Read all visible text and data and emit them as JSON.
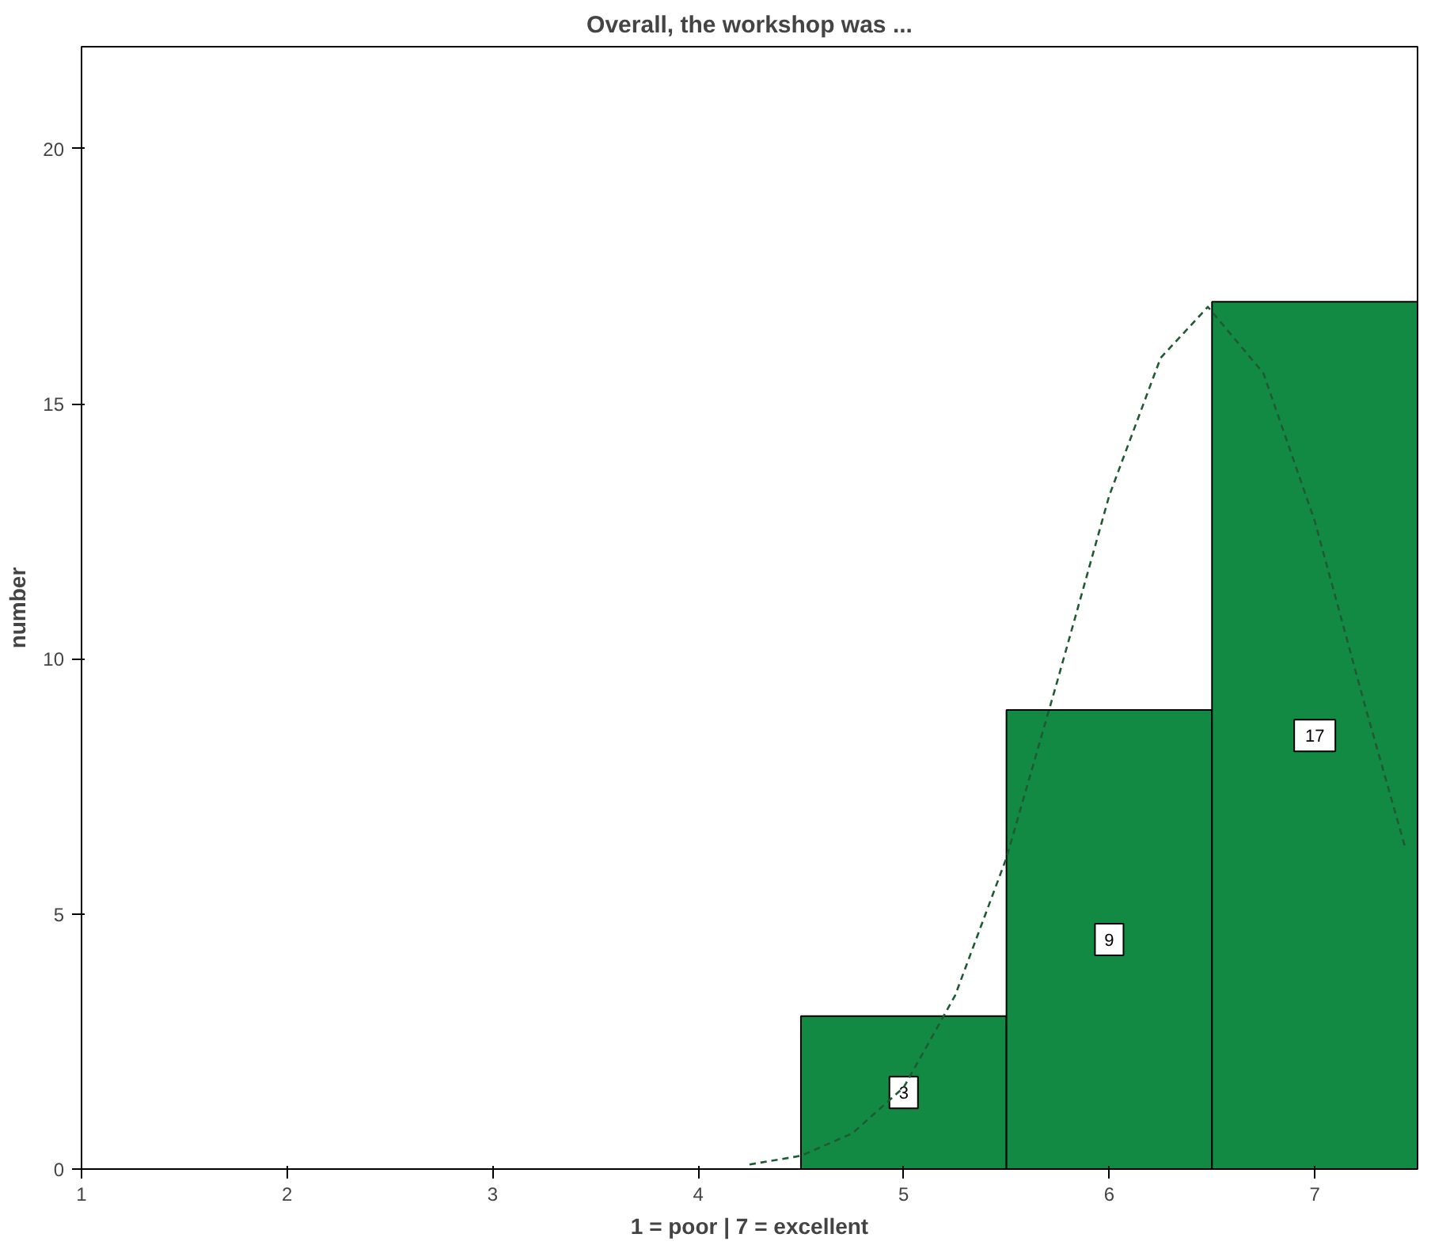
{
  "chart_data": {
    "type": "histogram",
    "title": "Overall, the workshop was ...",
    "xlabel": "1 = poor | 7 = excellent",
    "ylabel": "number",
    "bins": [
      4.5,
      5.5,
      6.5,
      7.5
    ],
    "series": [
      {
        "color": "#138a44",
        "values": [
          3,
          9,
          17
        ],
        "value_labels": [
          "3",
          "9",
          "17"
        ]
      },
      {
        "type": "line",
        "color": "#1f5a33",
        "line_style": "dashed",
        "x": [
          4.25,
          4.5,
          4.75,
          5,
          5.25,
          5.5,
          5.75,
          6,
          6.25,
          6.48,
          6.75,
          7,
          7.25,
          7.44
        ],
        "values": [
          0.09,
          0.26,
          0.7,
          1.6,
          3.4,
          6.1,
          9.6,
          13.2,
          15.9,
          16.9,
          15.6,
          12.7,
          9,
          6.3
        ]
      }
    ],
    "xlim": [
      1,
      7.5
    ],
    "ylim": [
      0,
      22
    ],
    "xticks": [
      1,
      2,
      3,
      4,
      5,
      6,
      7
    ],
    "yticks": [
      0,
      5,
      10,
      15,
      20
    ],
    "grid": false
  }
}
